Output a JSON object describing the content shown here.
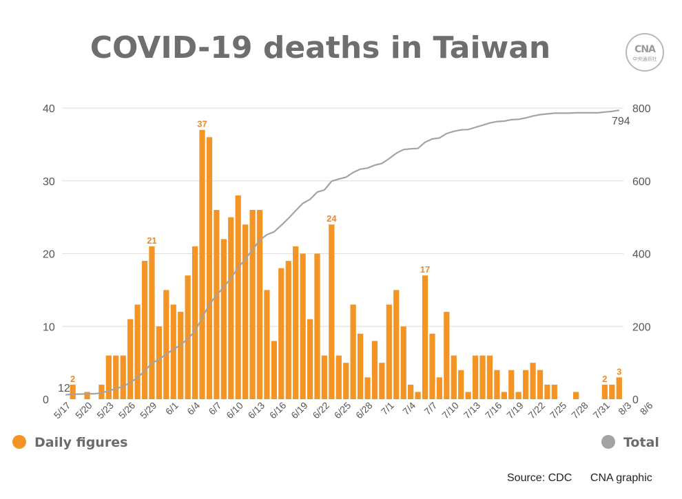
{
  "title": "COVID-19 deaths in Taiwan",
  "logo": {
    "mark": "CNA",
    "sub": "中央通訊社"
  },
  "source": "Source: CDC",
  "credit": "CNA graphic",
  "colors": {
    "daily": "#f39424",
    "total": "#a3a3a3",
    "label": "#f0882a",
    "grid": "#dedede",
    "axis_text": "#555555"
  },
  "legend": [
    {
      "label": "Daily figures",
      "color": "#f39424",
      "icon": "circle-icon"
    },
    {
      "label": "Total",
      "color": "#a3a3a3",
      "icon": "circle-icon"
    }
  ],
  "chart_data": {
    "type": "bar",
    "title": "COVID-19 deaths in Taiwan",
    "x_start": "5/17",
    "x_tick_labels": [
      "5/17",
      "5/20",
      "5/23",
      "5/26",
      "5/29",
      "6/1",
      "6/4",
      "6/7",
      "6/10",
      "6/13",
      "6/16",
      "6/19",
      "6/22",
      "6/25",
      "6/28",
      "7/1",
      "7/4",
      "7/7",
      "7/10",
      "7/13",
      "7/16",
      "7/19",
      "7/22",
      "7/25",
      "7/28",
      "7/31",
      "8/3",
      "8/6"
    ],
    "y_left": {
      "ticks": [
        0,
        10,
        20,
        30,
        40
      ],
      "range": [
        0,
        40
      ]
    },
    "y_right": {
      "ticks": [
        0,
        200,
        400,
        600,
        800
      ],
      "range": [
        0,
        800
      ]
    },
    "grid": true,
    "series": [
      {
        "name": "Daily figures",
        "axis": "left",
        "type": "bar",
        "values": [
          0,
          2,
          0,
          1,
          0,
          2,
          6,
          6,
          6,
          11,
          13,
          19,
          21,
          10,
          15,
          13,
          12,
          17,
          21,
          37,
          36,
          26,
          22,
          25,
          28,
          24,
          26,
          26,
          15,
          8,
          18,
          19,
          21,
          20,
          11,
          20,
          6,
          24,
          6,
          5,
          13,
          9,
          3,
          8,
          5,
          13,
          15,
          10,
          2,
          1,
          17,
          9,
          3,
          12,
          6,
          4,
          1,
          6,
          6,
          6,
          4,
          1,
          4,
          1,
          4,
          5,
          4,
          2,
          2,
          0,
          0,
          1,
          0,
          0,
          0,
          2,
          2,
          3
        ]
      },
      {
        "name": "Total",
        "axis": "right",
        "type": "line",
        "values": [
          12,
          14,
          14,
          15,
          15,
          17,
          23,
          29,
          35,
          46,
          59,
          78,
          99,
          109,
          124,
          137,
          149,
          166,
          187,
          224,
          260,
          286,
          308,
          333,
          361,
          385,
          411,
          437,
          452,
          460,
          478,
          497,
          518,
          538,
          549,
          569,
          575,
          599,
          605,
          610,
          623,
          632,
          635,
          643,
          648,
          661,
          676,
          686,
          688,
          689,
          706,
          715,
          718,
          730,
          736,
          740,
          741,
          747,
          753,
          759,
          763,
          764,
          768,
          769,
          773,
          778,
          782,
          784,
          786,
          786,
          786,
          787,
          787,
          787,
          787,
          789,
          791,
          794
        ],
        "start_label": "12",
        "end_label": "794"
      }
    ],
    "bar_labels": [
      {
        "index": 1,
        "text": "2"
      },
      {
        "index": 12,
        "text": "21"
      },
      {
        "index": 19,
        "text": "37"
      },
      {
        "index": 37,
        "text": "24"
      },
      {
        "index": 50,
        "text": "17"
      },
      {
        "index": 75,
        "text": "2"
      },
      {
        "index": 77,
        "text": "3"
      }
    ]
  }
}
